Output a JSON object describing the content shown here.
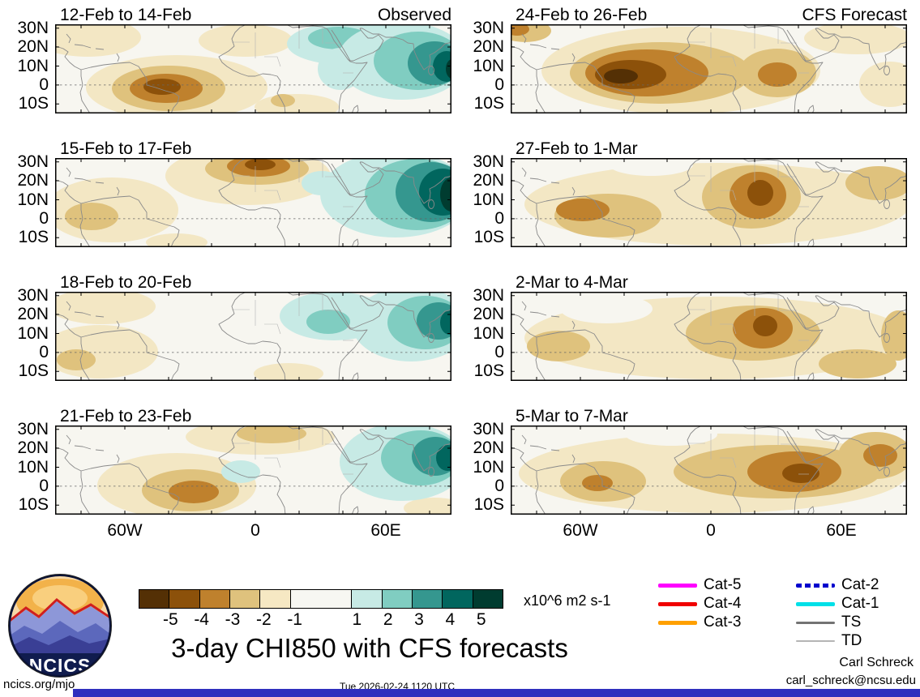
{
  "figure": {
    "site": "ncics.org/mjo",
    "timestamp": "Tue 2026-02-24 1120 UTC",
    "author": "Carl Schreck",
    "email": "carl_schreck@ncsu.edu",
    "logo_text": "NCICS",
    "bar_color": "#2f2fbe"
  },
  "chart_data": {
    "type": "heatmap",
    "title": "3-day CHI850 with CFS forecasts",
    "units": "x10^6 m2 s-1",
    "columns": [
      "Observed",
      "CFS Forecast"
    ],
    "lat_ticks": [
      "30N",
      "20N",
      "10N",
      "0",
      "10S"
    ],
    "lon_ticks": [
      "60W",
      "0",
      "60E"
    ],
    "colorbar": {
      "labels": [
        "-5",
        "-4",
        "-3",
        "-2",
        "-1",
        "1",
        "2",
        "3",
        "4",
        "5"
      ],
      "colors": [
        "#543005",
        "#8c510a",
        "#bf812d",
        "#dfc27d",
        "#f6e8c3",
        "#f7f7f2",
        "#c7eae5",
        "#80cdc1",
        "#35978f",
        "#01665e",
        "#003c30"
      ]
    },
    "level_colors": {
      "-5": "#543005",
      "-4": "#8c510a",
      "-3": "#bf812d",
      "-2": "#dfc27d",
      "-1": "#f3e7c4",
      "0": "#f7f6f0",
      "1": "#c7eae5",
      "2": "#80cdc1",
      "3": "#35978f",
      "4": "#01665e",
      "5": "#003c30"
    },
    "axis_layout": {
      "map_cols": [
        68,
        630
      ],
      "map_rows": [
        30,
        195,
        360,
        525
      ],
      "map_w": 489,
      "map_h": 110,
      "lat_pos": [
        4.7,
        28,
        51.5,
        74.9,
        98.3
      ],
      "lon_label_pos": [
        86,
        247,
        408
      ],
      "lon_tick_pos": [
        32,
        86,
        140,
        193,
        247,
        301,
        355,
        408,
        462
      ],
      "equator_y": 74.9
    },
    "panels": [
      {
        "title": "12-Feb to 14-Feb",
        "corner": "Observed",
        "col": 0,
        "row": 0,
        "anomalies": [
          [
            40,
            16,
            66,
            24,
            -1
          ],
          [
            235,
            20,
            58,
            20,
            -1
          ],
          [
            150,
            78,
            112,
            40,
            -1
          ],
          [
            140,
            79,
            70,
            28,
            -2
          ],
          [
            137,
            79,
            45,
            18,
            -3
          ],
          [
            132,
            77,
            23,
            10,
            -4
          ],
          [
            298,
            102,
            52,
            16,
            -1
          ],
          [
            281,
            94,
            15,
            8,
            -2
          ],
          [
            358,
            24,
            72,
            26,
            1
          ],
          [
            350,
            17,
            38,
            14,
            2
          ],
          [
            352,
            55,
            28,
            26,
            1
          ],
          [
            428,
            45,
            80,
            48,
            1
          ],
          [
            448,
            45,
            55,
            36,
            2
          ],
          [
            468,
            48,
            33,
            27,
            3
          ],
          [
            483,
            52,
            17,
            19,
            4
          ],
          [
            490,
            55,
            8,
            12,
            5
          ]
        ]
      },
      {
        "title": "24-Feb to 26-Feb",
        "corner": "CFS Forecast",
        "col": 1,
        "row": 0,
        "anomalies": [
          [
            210,
            57,
            172,
            54,
            -1
          ],
          [
            185,
            60,
            112,
            38,
            -2
          ],
          [
            168,
            60,
            76,
            29,
            -3
          ],
          [
            148,
            62,
            44,
            18,
            -4
          ],
          [
            136,
            64,
            21,
            9,
            -5
          ],
          [
            329,
            60,
            48,
            30,
            -2
          ],
          [
            329,
            62,
            24,
            15,
            -3
          ],
          [
            18,
            8,
            32,
            14,
            -2
          ],
          [
            8,
            6,
            15,
            8,
            -3
          ],
          [
            428,
            17,
            66,
            20,
            -1
          ],
          [
            468,
            74,
            38,
            28,
            -1
          ]
        ]
      },
      {
        "title": "15-Feb to 17-Feb",
        "corner": "",
        "col": 0,
        "row": 1,
        "anomalies": [
          [
            70,
            64,
            82,
            40,
            -1
          ],
          [
            45,
            72,
            33,
            17,
            -2
          ],
          [
            238,
            22,
            102,
            36,
            -1
          ],
          [
            249,
            13,
            64,
            20,
            -2
          ],
          [
            251,
            10,
            39,
            13,
            -3
          ],
          [
            253,
            8,
            19,
            7,
            -4
          ],
          [
            150,
            104,
            38,
            11,
            -1
          ],
          [
            329,
            31,
            25,
            15,
            1
          ],
          [
            420,
            45,
            93,
            53,
            1
          ],
          [
            446,
            45,
            64,
            44,
            2
          ],
          [
            464,
            42,
            44,
            37,
            3
          ],
          [
            478,
            42,
            29,
            29,
            4
          ],
          [
            489,
            45,
            14,
            21,
            5
          ]
        ]
      },
      {
        "title": "27-Feb to 1-Mar",
        "corner": "",
        "col": 1,
        "row": 1,
        "anomalies": [
          [
            255,
            57,
            238,
            51,
            -1
          ],
          [
            173,
            8,
            52,
            14,
            0
          ],
          [
            28,
            99,
            38,
            14,
            0
          ],
          [
            120,
            71,
            66,
            27,
            -2
          ],
          [
            89,
            64,
            33,
            14,
            -3
          ],
          [
            297,
            48,
            61,
            39,
            -2
          ],
          [
            305,
            46,
            35,
            29,
            -3
          ],
          [
            308,
            43,
            16,
            16,
            -4
          ],
          [
            454,
            31,
            41,
            21,
            -2
          ]
        ]
      },
      {
        "title": "18-Feb to 20-Feb",
        "corner": "",
        "col": 0,
        "row": 2,
        "anomalies": [
          [
            58,
            18,
            66,
            22,
            -1
          ],
          [
            55,
            74,
            72,
            33,
            -1
          ],
          [
            26,
            84,
            24,
            13,
            -2
          ],
          [
            288,
            101,
            43,
            13,
            -1
          ],
          [
            344,
            30,
            67,
            30,
            1
          ],
          [
            337,
            37,
            27,
            15,
            2
          ],
          [
            439,
            40,
            73,
            46,
            1
          ],
          [
            457,
            38,
            47,
            33,
            2
          ],
          [
            473,
            36,
            27,
            23,
            3
          ],
          [
            487,
            38,
            12,
            15,
            4
          ]
        ]
      },
      {
        "title": "2-Mar to 4-Mar",
        "corner": "",
        "col": 1,
        "row": 2,
        "anomalies": [
          [
            255,
            57,
            238,
            51,
            -1
          ],
          [
            118,
            21,
            57,
            18,
            0
          ],
          [
            34,
            17,
            28,
            13,
            0
          ],
          [
            59,
            67,
            39,
            19,
            -2
          ],
          [
            299,
            51,
            83,
            34,
            -2
          ],
          [
            311,
            45,
            37,
            25,
            -3
          ],
          [
            314,
            42,
            15,
            13,
            -4
          ],
          [
            478,
            54,
            21,
            31,
            -2
          ],
          [
            428,
            89,
            48,
            18,
            -2
          ]
        ]
      },
      {
        "title": "21-Feb to 23-Feb",
        "corner": "",
        "col": 0,
        "row": 3,
        "anomalies": [
          [
            150,
            74,
            98,
            40,
            -1
          ],
          [
            167,
            80,
            60,
            26,
            -2
          ],
          [
            171,
            82,
            31,
            14,
            -3
          ],
          [
            253,
            14,
            92,
            22,
            -1
          ],
          [
            267,
            10,
            43,
            12,
            -2
          ],
          [
            468,
            102,
            38,
            13,
            -1
          ],
          [
            229,
            57,
            24,
            14,
            1
          ],
          [
            429,
            45,
            78,
            48,
            1
          ],
          [
            451,
            40,
            49,
            34,
            2
          ],
          [
            469,
            38,
            29,
            24,
            3
          ],
          [
            484,
            40,
            14,
            16,
            4
          ]
        ]
      },
      {
        "title": "5-Mar to 7-Mar",
        "corner": "",
        "col": 1,
        "row": 3,
        "anomalies": [
          [
            250,
            59,
            240,
            49,
            -1
          ],
          [
            198,
            11,
            57,
            14,
            0
          ],
          [
            19,
            14,
            28,
            13,
            0
          ],
          [
            114,
            69,
            53,
            25,
            -2
          ],
          [
            107,
            71,
            19,
            10,
            -3
          ],
          [
            329,
            57,
            128,
            33,
            -2
          ],
          [
            350,
            57,
            58,
            25,
            -3
          ],
          [
            358,
            59,
            23,
            12,
            -4
          ],
          [
            450,
            37,
            46,
            29,
            -2
          ],
          [
            456,
            37,
            21,
            14,
            -3
          ]
        ]
      }
    ],
    "legend": [
      {
        "label": "Cat-5",
        "color": "#ff00ff",
        "style": "solid",
        "weight": 5,
        "col": 0
      },
      {
        "label": "Cat-4",
        "color": "#f00000",
        "style": "solid",
        "weight": 5,
        "col": 0
      },
      {
        "label": "Cat-3",
        "color": "#ffa000",
        "style": "solid",
        "weight": 5,
        "col": 0
      },
      {
        "label": "Cat-2",
        "color": "#0000cd",
        "style": "dashed",
        "weight": 5,
        "col": 1
      },
      {
        "label": "Cat-1",
        "color": "#00e0e8",
        "style": "solid",
        "weight": 5,
        "col": 1
      },
      {
        "label": "TS",
        "color": "#737373",
        "style": "solid",
        "weight": 3,
        "col": 1
      },
      {
        "label": "TD",
        "color": "#b5b5b5",
        "style": "solid",
        "weight": 2,
        "col": 1
      }
    ]
  }
}
